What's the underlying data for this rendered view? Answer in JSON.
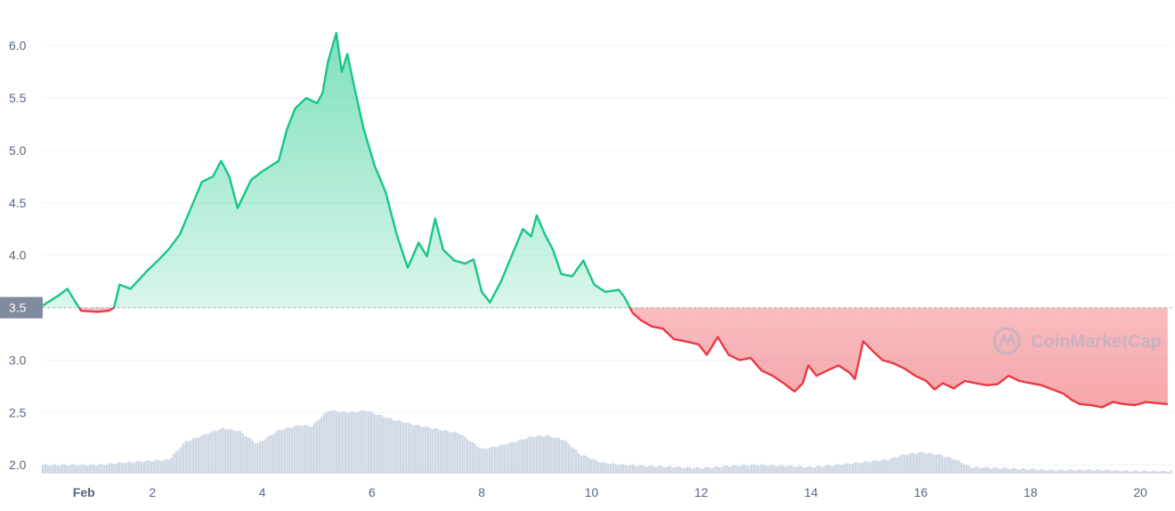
{
  "chart_data": {
    "type": "area",
    "watermark": "CoinMarketCap",
    "reference_price": "3.5",
    "ylim": [
      1.9,
      6.35
    ],
    "y_ticks": [
      {
        "v": 2.0,
        "label": "2.0"
      },
      {
        "v": 2.5,
        "label": "2.5"
      },
      {
        "v": 3.0,
        "label": "3.0"
      },
      {
        "v": 3.5,
        "label": "3.5"
      },
      {
        "v": 4.0,
        "label": "4.0"
      },
      {
        "v": 4.5,
        "label": "4.5"
      },
      {
        "v": 5.0,
        "label": "5.0"
      },
      {
        "v": 5.5,
        "label": "5.5"
      },
      {
        "v": 6.0,
        "label": "6.0"
      }
    ],
    "x_ticks": [
      {
        "d": 0.75,
        "label": "Feb",
        "bold": true
      },
      {
        "d": 2,
        "label": "2"
      },
      {
        "d": 4,
        "label": "4"
      },
      {
        "d": 6,
        "label": "6"
      },
      {
        "d": 8,
        "label": "8"
      },
      {
        "d": 10,
        "label": "10"
      },
      {
        "d": 12,
        "label": "12"
      },
      {
        "d": 14,
        "label": "14"
      },
      {
        "d": 16,
        "label": "16"
      },
      {
        "d": 18,
        "label": "18"
      },
      {
        "d": 20,
        "label": "20"
      }
    ],
    "xlim": [
      0,
      20.6
    ],
    "colors": {
      "up": "#16c784",
      "down": "#ea3943",
      "volume": "#cfd6e4",
      "grid": "#eff2f5",
      "tick": "#58667e",
      "refbox": "#808a9d"
    },
    "price": [
      [
        0.0,
        3.52
      ],
      [
        0.3,
        3.62
      ],
      [
        0.45,
        3.68
      ],
      [
        0.6,
        3.55
      ],
      [
        0.7,
        3.47
      ],
      [
        1.0,
        3.46
      ],
      [
        1.2,
        3.47
      ],
      [
        1.3,
        3.5
      ],
      [
        1.4,
        3.72
      ],
      [
        1.6,
        3.68
      ],
      [
        1.9,
        3.85
      ],
      [
        2.1,
        3.95
      ],
      [
        2.3,
        4.06
      ],
      [
        2.5,
        4.2
      ],
      [
        2.7,
        4.45
      ],
      [
        2.9,
        4.7
      ],
      [
        3.1,
        4.75
      ],
      [
        3.25,
        4.9
      ],
      [
        3.4,
        4.75
      ],
      [
        3.55,
        4.45
      ],
      [
        3.8,
        4.72
      ],
      [
        4.0,
        4.8
      ],
      [
        4.15,
        4.85
      ],
      [
        4.3,
        4.9
      ],
      [
        4.45,
        5.2
      ],
      [
        4.6,
        5.4
      ],
      [
        4.8,
        5.5
      ],
      [
        5.0,
        5.45
      ],
      [
        5.1,
        5.55
      ],
      [
        5.2,
        5.85
      ],
      [
        5.35,
        6.12
      ],
      [
        5.45,
        5.75
      ],
      [
        5.55,
        5.92
      ],
      [
        5.7,
        5.55
      ],
      [
        5.85,
        5.2
      ],
      [
        6.05,
        4.85
      ],
      [
        6.25,
        4.6
      ],
      [
        6.45,
        4.2
      ],
      [
        6.65,
        3.88
      ],
      [
        6.85,
        4.12
      ],
      [
        7.0,
        3.99
      ],
      [
        7.15,
        4.35
      ],
      [
        7.3,
        4.05
      ],
      [
        7.5,
        3.95
      ],
      [
        7.7,
        3.92
      ],
      [
        7.85,
        3.96
      ],
      [
        8.0,
        3.65
      ],
      [
        8.15,
        3.55
      ],
      [
        8.35,
        3.75
      ],
      [
        8.55,
        4.0
      ],
      [
        8.75,
        4.25
      ],
      [
        8.9,
        4.18
      ],
      [
        9.0,
        4.38
      ],
      [
        9.15,
        4.2
      ],
      [
        9.3,
        4.05
      ],
      [
        9.45,
        3.82
      ],
      [
        9.65,
        3.8
      ],
      [
        9.85,
        3.95
      ],
      [
        10.05,
        3.72
      ],
      [
        10.25,
        3.65
      ],
      [
        10.5,
        3.67
      ],
      [
        10.6,
        3.6
      ],
      [
        10.75,
        3.45
      ],
      [
        10.9,
        3.38
      ],
      [
        11.1,
        3.32
      ],
      [
        11.3,
        3.3
      ],
      [
        11.5,
        3.2
      ],
      [
        11.7,
        3.18
      ],
      [
        11.95,
        3.15
      ],
      [
        12.1,
        3.05
      ],
      [
        12.3,
        3.22
      ],
      [
        12.5,
        3.05
      ],
      [
        12.7,
        3.0
      ],
      [
        12.9,
        3.02
      ],
      [
        13.1,
        2.9
      ],
      [
        13.3,
        2.85
      ],
      [
        13.5,
        2.78
      ],
      [
        13.7,
        2.7
      ],
      [
        13.85,
        2.78
      ],
      [
        13.95,
        2.95
      ],
      [
        14.1,
        2.85
      ],
      [
        14.3,
        2.9
      ],
      [
        14.5,
        2.95
      ],
      [
        14.7,
        2.88
      ],
      [
        14.8,
        2.82
      ],
      [
        14.95,
        3.18
      ],
      [
        15.1,
        3.1
      ],
      [
        15.3,
        3.0
      ],
      [
        15.5,
        2.97
      ],
      [
        15.7,
        2.92
      ],
      [
        15.9,
        2.85
      ],
      [
        16.1,
        2.8
      ],
      [
        16.25,
        2.72
      ],
      [
        16.4,
        2.78
      ],
      [
        16.6,
        2.73
      ],
      [
        16.8,
        2.8
      ],
      [
        17.0,
        2.78
      ],
      [
        17.2,
        2.76
      ],
      [
        17.4,
        2.77
      ],
      [
        17.6,
        2.85
      ],
      [
        17.8,
        2.8
      ],
      [
        18.0,
        2.78
      ],
      [
        18.2,
        2.76
      ],
      [
        18.4,
        2.72
      ],
      [
        18.6,
        2.68
      ],
      [
        18.75,
        2.62
      ],
      [
        18.9,
        2.58
      ],
      [
        19.1,
        2.57
      ],
      [
        19.3,
        2.55
      ],
      [
        19.5,
        2.6
      ],
      [
        19.7,
        2.58
      ],
      [
        19.9,
        2.57
      ],
      [
        20.1,
        2.6
      ],
      [
        20.3,
        2.59
      ],
      [
        20.5,
        2.58
      ]
    ],
    "volume": [
      [
        0.0,
        2.0
      ],
      [
        1.0,
        2.0
      ],
      [
        1.4,
        2.02
      ],
      [
        2.3,
        2.05
      ],
      [
        2.6,
        2.22
      ],
      [
        3.0,
        2.3
      ],
      [
        3.3,
        2.35
      ],
      [
        3.6,
        2.32
      ],
      [
        3.9,
        2.2
      ],
      [
        4.3,
        2.33
      ],
      [
        4.7,
        2.38
      ],
      [
        4.9,
        2.37
      ],
      [
        5.2,
        2.52
      ],
      [
        5.6,
        2.5
      ],
      [
        5.9,
        2.52
      ],
      [
        6.1,
        2.48
      ],
      [
        6.4,
        2.43
      ],
      [
        6.8,
        2.38
      ],
      [
        7.2,
        2.34
      ],
      [
        7.6,
        2.3
      ],
      [
        8.0,
        2.15
      ],
      [
        8.3,
        2.18
      ],
      [
        8.6,
        2.22
      ],
      [
        8.9,
        2.27
      ],
      [
        9.2,
        2.28
      ],
      [
        9.5,
        2.24
      ],
      [
        9.8,
        2.1
      ],
      [
        10.2,
        2.02
      ],
      [
        10.6,
        2.0
      ],
      [
        11.0,
        1.99
      ],
      [
        11.5,
        1.98
      ],
      [
        12.0,
        1.97
      ],
      [
        12.5,
        1.99
      ],
      [
        13.0,
        2.0
      ],
      [
        13.5,
        1.99
      ],
      [
        14.0,
        1.98
      ],
      [
        14.5,
        2.0
      ],
      [
        15.0,
        2.03
      ],
      [
        15.4,
        2.05
      ],
      [
        15.7,
        2.1
      ],
      [
        16.0,
        2.12
      ],
      [
        16.3,
        2.1
      ],
      [
        16.6,
        2.06
      ],
      [
        16.9,
        1.98
      ],
      [
        17.4,
        1.97
      ],
      [
        17.9,
        1.96
      ],
      [
        18.4,
        1.95
      ],
      [
        18.9,
        1.95
      ],
      [
        19.4,
        1.95
      ],
      [
        19.9,
        1.94
      ],
      [
        20.5,
        1.94
      ]
    ]
  }
}
